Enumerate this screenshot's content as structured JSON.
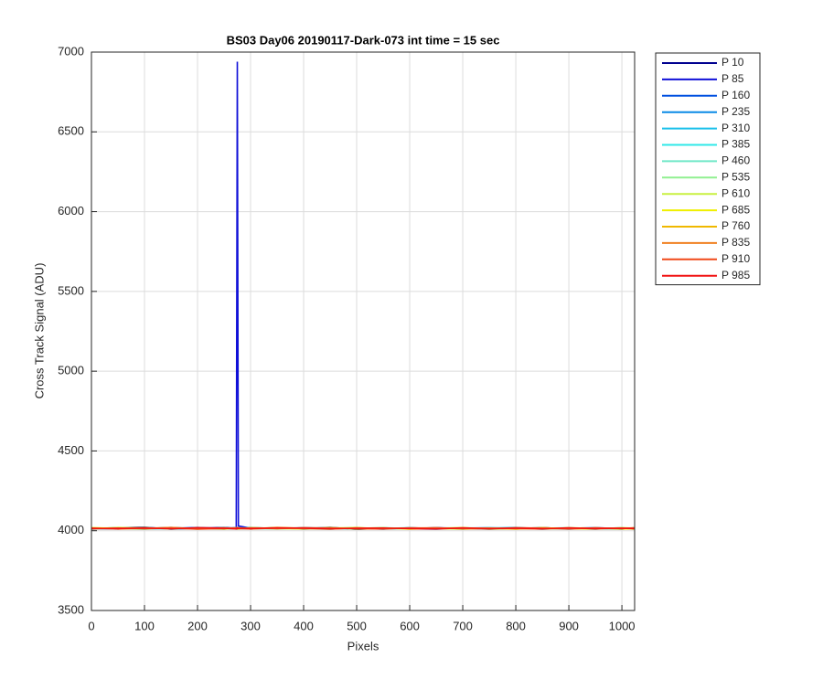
{
  "chart_data": {
    "type": "line",
    "title": "BS03 Day06 20190117-Dark-073 int time = 15 sec",
    "x_label": "Pixels",
    "y_label": "Cross Track Signal (ADU)",
    "x": [
      0,
      50,
      100,
      150,
      200,
      250,
      273,
      275,
      277,
      300,
      350,
      400,
      450,
      500,
      550,
      600,
      650,
      700,
      750,
      800,
      850,
      900,
      950,
      1000,
      1023
    ],
    "xlim": [
      0,
      1024
    ],
    "xticks": [
      0,
      100,
      200,
      300,
      400,
      500,
      600,
      700,
      800,
      900,
      1000
    ],
    "ylim": [
      3500,
      7000
    ],
    "yticks": [
      3500,
      4000,
      4500,
      5000,
      5500,
      6000,
      6500,
      7000
    ],
    "grid": true,
    "legend": "outside-top-right",
    "series": [
      {
        "name": "P 10",
        "color": "#00008f",
        "values": [
          4012,
          4018,
          4022,
          4010,
          4015,
          4020,
          4016,
          4014,
          4019,
          4011,
          4017,
          4013,
          4021,
          4009,
          4016,
          4012,
          4018,
          4015,
          4010,
          4014,
          4019,
          4012,
          4016,
          4011,
          4015
        ]
      },
      {
        "name": "P 85",
        "color": "#1010d8",
        "values": [
          4015,
          4011,
          4019,
          4014,
          4020,
          4013,
          4020,
          6940,
          4030,
          4016,
          4012,
          4018,
          4014,
          4010,
          4017,
          4013,
          4019,
          4011,
          4016,
          4012,
          4018,
          4014,
          4010,
          4017,
          4013
        ]
      },
      {
        "name": "P 160",
        "color": "#0050e0",
        "values": [
          4010,
          4016,
          4013,
          4020,
          4012,
          4017,
          4011,
          4015,
          4018,
          4014,
          4019,
          4010,
          4016,
          4013,
          4011,
          4018,
          4014,
          4017,
          4012,
          4016,
          4010,
          4015,
          4019,
          4013,
          4011
        ]
      },
      {
        "name": "P 235",
        "color": "#0a8ae6",
        "values": [
          4017,
          4013,
          4010,
          4016,
          4019,
          4011,
          4014,
          4012,
          4016,
          4020,
          4013,
          4017,
          4011,
          4015,
          4018,
          4012,
          4010,
          4016,
          4019,
          4013,
          4017,
          4011,
          4014,
          4018,
          4012
        ]
      },
      {
        "name": "P 310",
        "color": "#18bfea",
        "values": [
          4013,
          4019,
          4015,
          4011,
          4017,
          4014,
          4018,
          4010,
          4013,
          4016,
          4012,
          4019,
          4015,
          4018,
          4010,
          4016,
          4013,
          4011,
          4017,
          4020,
          4012,
          4016,
          4013,
          4010,
          4018
        ]
      },
      {
        "name": "P 385",
        "color": "#30e8e8",
        "values": [
          4016,
          4012,
          4018,
          4015,
          4011,
          4019,
          4013,
          4017,
          4011,
          4014,
          4018,
          4012,
          4010,
          4017,
          4014,
          4019,
          4011,
          4015,
          4013,
          4018,
          4014,
          4010,
          4017,
          4015,
          4012
        ]
      },
      {
        "name": "P 460",
        "color": "#70e8c8",
        "values": [
          4011,
          4017,
          4014,
          4019,
          4013,
          4010,
          4016,
          4019,
          4014,
          4012,
          4015,
          4018,
          4013,
          4011,
          4019,
          4014,
          4017,
          4012,
          4018,
          4011,
          4015,
          4019,
          4012,
          4016,
          4014
        ]
      },
      {
        "name": "P 535",
        "color": "#90f090",
        "values": [
          4018,
          4014,
          4011,
          4017,
          4016,
          4012,
          4019,
          4013,
          4017,
          4015,
          4011,
          4016,
          4019,
          4012,
          4015,
          4011,
          4016,
          4019,
          4014,
          4017,
          4011,
          4013,
          4018,
          4012,
          4017
        ]
      },
      {
        "name": "P 610",
        "color": "#c8f040",
        "values": [
          4014,
          4020,
          4016,
          4012,
          4018,
          4015,
          4012,
          4016,
          4010,
          4019,
          4014,
          4011,
          4017,
          4020,
          4012,
          4017,
          4013,
          4010,
          4016,
          4014,
          4019,
          4012,
          4011,
          4019,
          4016
        ]
      },
      {
        "name": "P 685",
        "color": "#f0f000",
        "values": [
          4019,
          4015,
          4012,
          4018,
          4011,
          4016,
          4014,
          4011,
          4018,
          4013,
          4020,
          4015,
          4012,
          4016,
          4018,
          4010,
          4015,
          4019,
          4011,
          4015,
          4013,
          4018,
          4016,
          4011,
          4013
        ]
      },
      {
        "name": "P 760",
        "color": "#f0b800",
        "values": [
          4013,
          4016,
          4019,
          4013,
          4017,
          4011,
          4017,
          4015,
          4012,
          4018,
          4016,
          4013,
          4019,
          4011,
          4014,
          4016,
          4012,
          4017,
          4015,
          4010,
          4018,
          4014,
          4012,
          4017,
          4010
        ]
      },
      {
        "name": "P 835",
        "color": "#f08020",
        "values": [
          4016,
          4011,
          4015,
          4020,
          4014,
          4018,
          4012,
          4019,
          4015,
          4011,
          4017,
          4014,
          4010,
          4018,
          4013,
          4015,
          4019,
          4012,
          4016,
          4013,
          4011,
          4017,
          4015,
          4013,
          4019
        ]
      },
      {
        "name": "P 910",
        "color": "#f04818",
        "values": [
          4012,
          4017,
          4013,
          4016,
          4010,
          4014,
          4018,
          4013,
          4016,
          4017,
          4013,
          4019,
          4016,
          4014,
          4011,
          4018,
          4016,
          4014,
          4012,
          4019,
          4016,
          4011,
          4018,
          4014,
          4016
        ]
      },
      {
        "name": "P 985",
        "color": "#f01010",
        "values": [
          4015,
          4013,
          4017,
          4012,
          4019,
          4016,
          4011,
          4017,
          4014,
          4013,
          4019,
          4016,
          4012,
          4015,
          4017,
          4013,
          4011,
          4018,
          4014,
          4016,
          4012,
          4018,
          4013,
          4016,
          4014
        ]
      }
    ]
  }
}
